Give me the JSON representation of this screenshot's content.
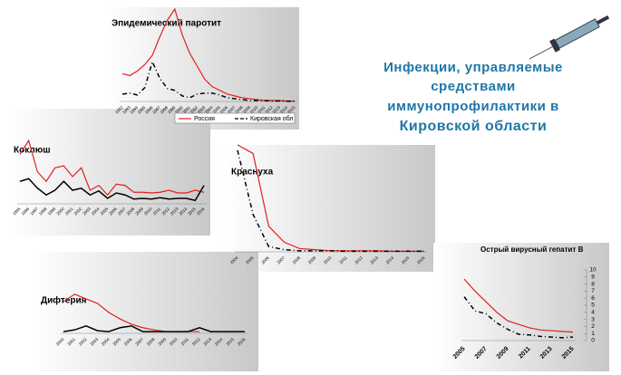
{
  "slide": {
    "title_lines": [
      "Инфекции, управляемые",
      "средствами",
      "иммунопрофилактики в",
      "Кировской области"
    ]
  },
  "chart_data": [
    {
      "type": "line",
      "title": "Эпидемический паротит",
      "categories": [
        "1992",
        "1993",
        "1994",
        "1995",
        "1996",
        "1997",
        "1998",
        "1999",
        "2000",
        "2001",
        "2002",
        "2003",
        "2004",
        "2005",
        "2006",
        "2007",
        "2008",
        "2009",
        "2010",
        "2011",
        "2012",
        "2013",
        "2014",
        "2015"
      ],
      "series": [
        {
          "name": "Россия",
          "color": "#e02020",
          "values": [
            30,
            28,
            33,
            40,
            50,
            70,
            88,
            100,
            72,
            52,
            38,
            24,
            16,
            12,
            8,
            6,
            4,
            3,
            2,
            1,
            1,
            1,
            0.5,
            0.5
          ]
        },
        {
          "name": "Кировская обл",
          "color": "#000000",
          "dashed": true,
          "values": [
            8,
            9,
            7,
            15,
            43,
            25,
            14,
            12,
            6,
            4,
            8,
            9,
            9,
            7,
            4,
            3,
            2,
            1,
            1,
            1,
            0.5,
            0.5,
            0.3,
            0.3
          ]
        }
      ],
      "ylim": [
        0,
        100
      ],
      "legend": "bottom"
    },
    {
      "type": "line",
      "title": "Коклюш",
      "categories": [
        "1995",
        "1996",
        "1997",
        "1998",
        "1999",
        "2000",
        "2001",
        "2002",
        "2003",
        "2004",
        "2005",
        "2006",
        "2007",
        "2008",
        "2009",
        "2010",
        "2011",
        "2012",
        "2013",
        "2014",
        "2015",
        "2016"
      ],
      "series": [
        {
          "color": "#e02020",
          "values": [
            73,
            93,
            47,
            33,
            53,
            56,
            40,
            53,
            20,
            27,
            13,
            29,
            27,
            17,
            17,
            16,
            17,
            20,
            16,
            16,
            20,
            17
          ]
        },
        {
          "color": "#000000",
          "values": [
            33,
            37,
            23,
            13,
            20,
            33,
            20,
            23,
            13,
            19,
            8,
            16,
            13,
            7,
            8,
            7,
            9,
            7,
            8,
            8,
            5,
            27
          ]
        }
      ],
      "ylim": [
        0,
        100
      ]
    },
    {
      "type": "line",
      "title": "Краснуха",
      "categories": [
        "2004",
        "2005",
        "2006",
        "2007",
        "2008",
        "2009",
        "2010",
        "2011",
        "2012",
        "2013",
        "2014",
        "2015",
        "2016"
      ],
      "series": [
        {
          "color": "#e02020",
          "values": [
            100,
            92,
            24,
            9,
            3,
            2,
            1,
            1,
            1,
            1,
            0.5,
            0.5,
            0.5
          ]
        },
        {
          "color": "#000000",
          "dashed": true,
          "values": [
            95,
            35,
            5,
            2,
            1,
            1,
            1,
            0.5,
            0.5,
            0.5,
            0.5,
            0.5,
            0.5
          ]
        }
      ],
      "ylim": [
        0,
        100
      ]
    },
    {
      "type": "line",
      "title": "Дифтерия",
      "categories": [
        "2000",
        "2001",
        "2002",
        "2003",
        "2004",
        "2005",
        "2006",
        "2007",
        "2008",
        "2009",
        "2010",
        "2011",
        "2012",
        "2013",
        "2014",
        "2015",
        "2016"
      ],
      "series": [
        {
          "color": "#e02020",
          "values": [
            73,
            90,
            79,
            69,
            48,
            33,
            21,
            13,
            8,
            4,
            4,
            4,
            4,
            null,
            null,
            null,
            null
          ]
        },
        {
          "color": "#000000",
          "values": [
            4,
            8,
            17,
            6,
            4,
            13,
            17,
            4,
            4,
            4,
            4,
            4,
            13,
            4,
            4,
            4,
            4
          ]
        }
      ],
      "ylim": [
        0,
        100
      ]
    },
    {
      "type": "line",
      "title": "Острый вирусный гепатит В",
      "categories": [
        "2005",
        null,
        "2007",
        null,
        "2009",
        null,
        "2011",
        null,
        "2013",
        null,
        "2015"
      ],
      "series": [
        {
          "color": "#e02020",
          "values": [
            8.7,
            7,
            5.5,
            4,
            2.8,
            2.3,
            1.8,
            1.5,
            1.4,
            1.3,
            1.2
          ]
        },
        {
          "color": "#000000",
          "dashed": true,
          "values": [
            6.2,
            4.2,
            3.8,
            2.5,
            1.6,
            0.9,
            0.8,
            0.6,
            0.5,
            0.4,
            0.5
          ]
        }
      ],
      "ylim": [
        0,
        10
      ],
      "yticks": [
        0,
        1,
        2,
        3,
        4,
        5,
        6,
        7,
        8,
        9,
        10
      ]
    }
  ]
}
